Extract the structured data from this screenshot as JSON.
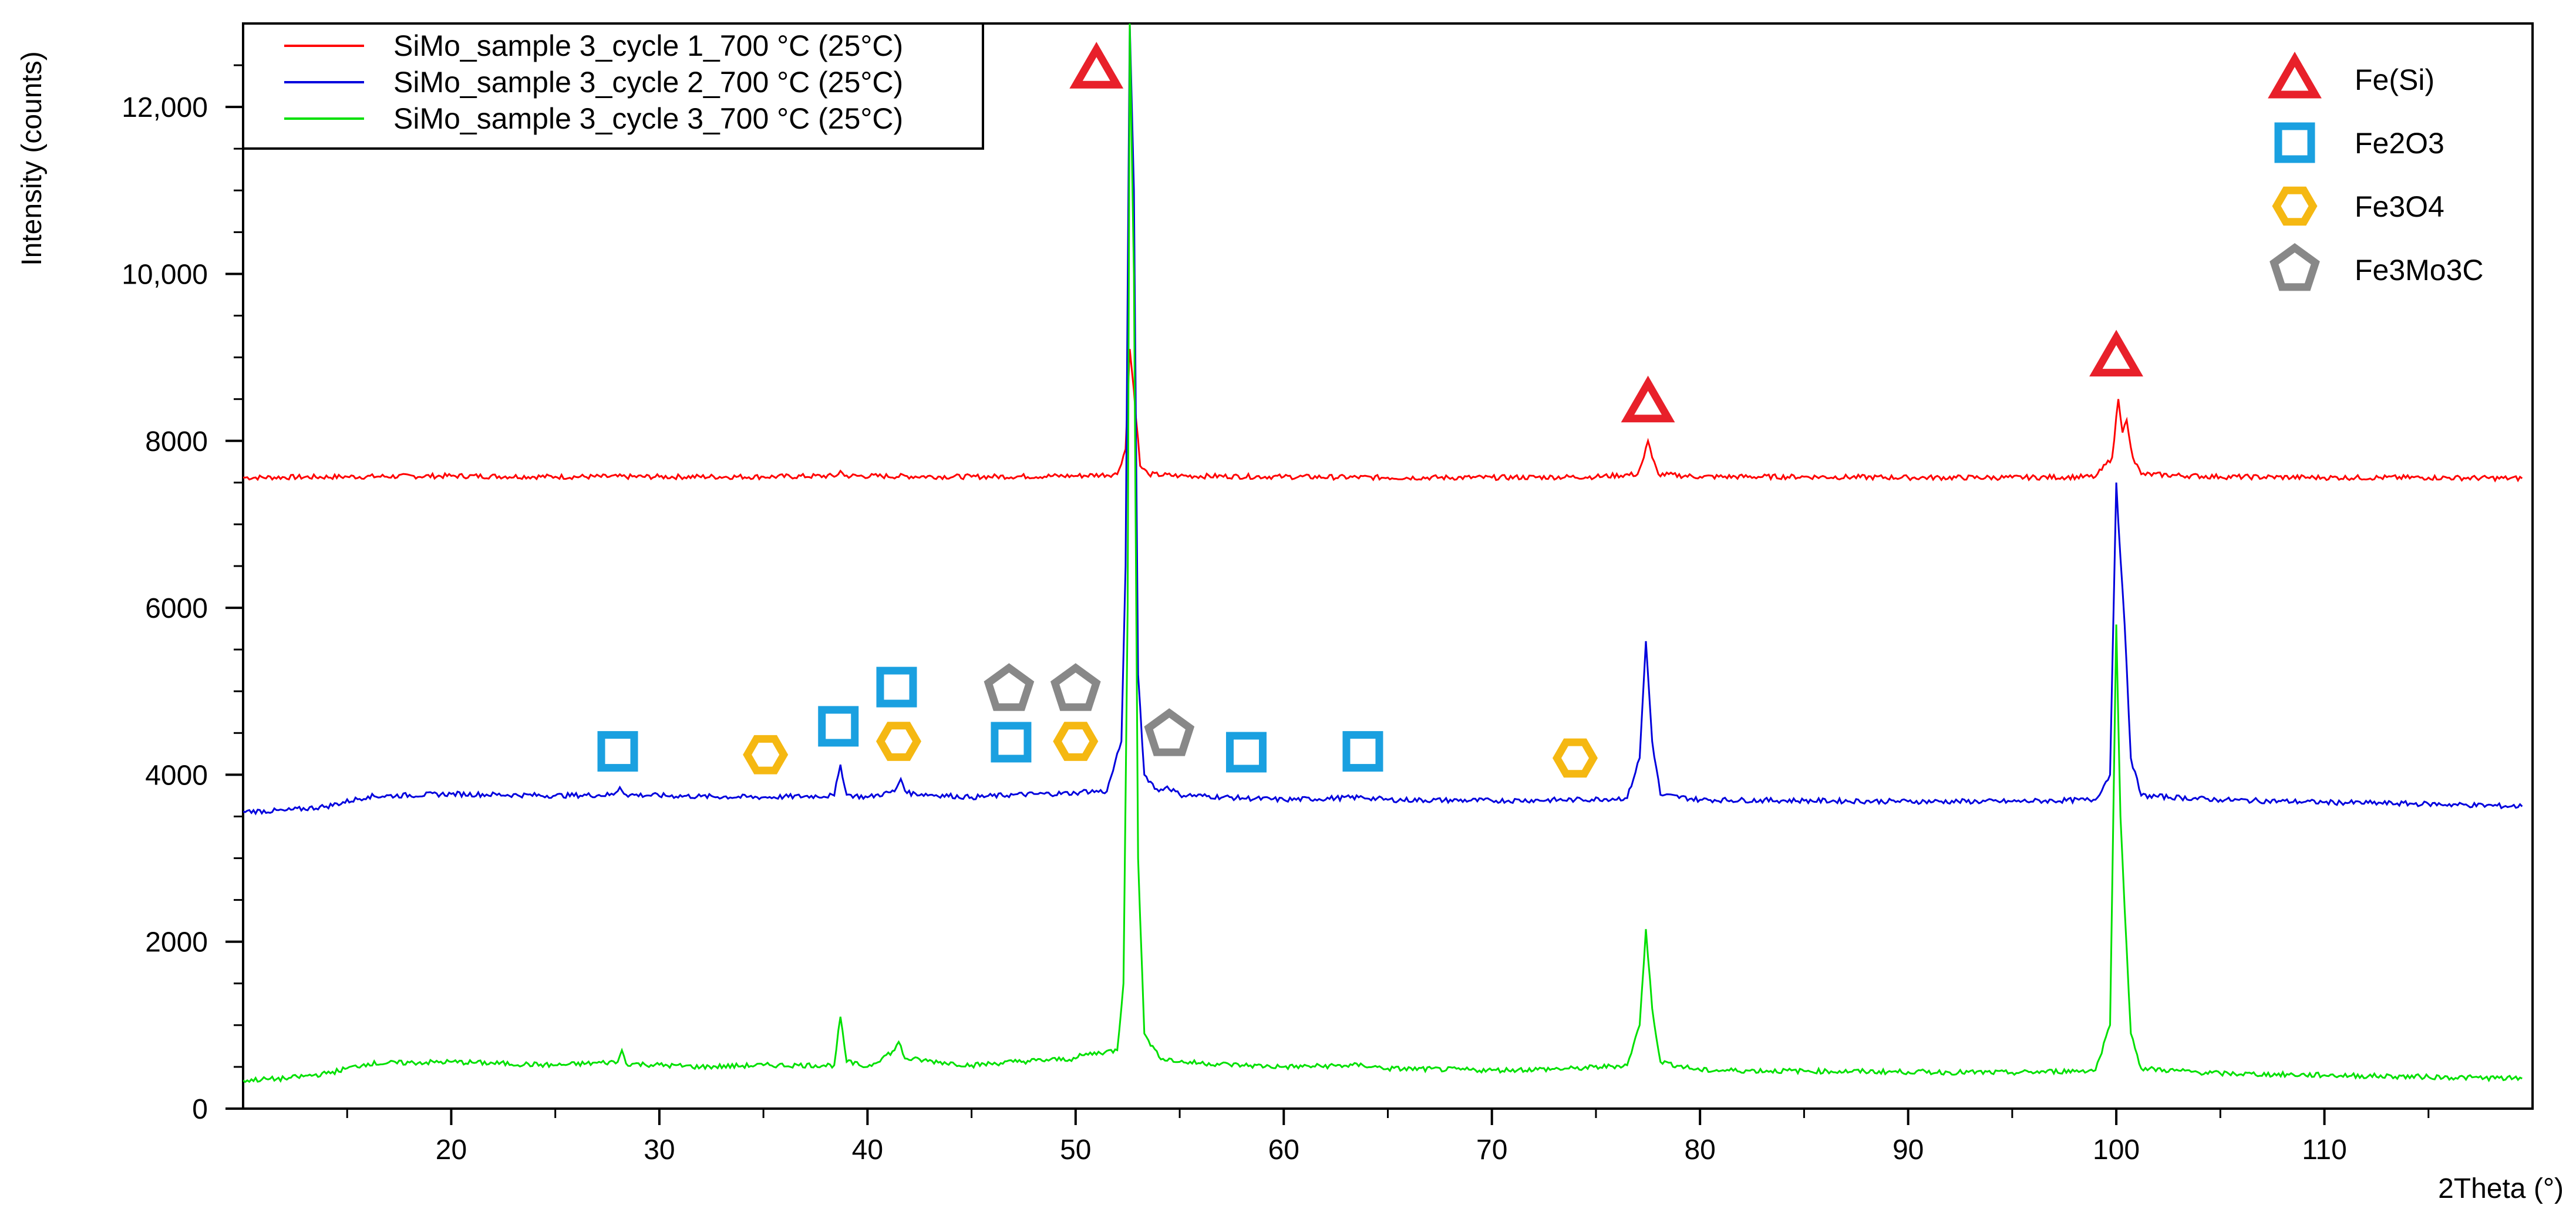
{
  "chart_data": {
    "type": "line",
    "xlabel": "2Theta (°)",
    "ylabel": "Intensity (counts)",
    "xlim": [
      10,
      120
    ],
    "ylim": [
      0,
      13000
    ],
    "x_ticks": [
      20,
      30,
      40,
      50,
      60,
      70,
      80,
      90,
      100,
      110
    ],
    "x_tick_labels": [
      "20",
      "30",
      "40",
      "50",
      "60",
      "70",
      "80",
      "90",
      "100",
      "110"
    ],
    "y_ticks": [
      0,
      2000,
      4000,
      6000,
      8000,
      10000,
      12000
    ],
    "y_tick_labels": [
      "0",
      "2000",
      "4000",
      "6000",
      "8000",
      "10,000",
      "12,000"
    ],
    "grid": false,
    "legend_position": "top-left",
    "series": [
      {
        "name": "SiMo_sample 3_cycle 1_700 °C (25°C)",
        "color": "#ff0000",
        "points": [
          [
            10,
            7560
          ],
          [
            15,
            7570
          ],
          [
            20,
            7580
          ],
          [
            25,
            7570
          ],
          [
            30,
            7570
          ],
          [
            35,
            7570
          ],
          [
            38.5,
            7580
          ],
          [
            38.7,
            7640
          ],
          [
            38.9,
            7580
          ],
          [
            45,
            7570
          ],
          [
            50,
            7580
          ],
          [
            52,
            7600
          ],
          [
            52.4,
            7900
          ],
          [
            52.6,
            9100
          ],
          [
            52.8,
            8600
          ],
          [
            53.1,
            7700
          ],
          [
            53.5,
            7600
          ],
          [
            55,
            7580
          ],
          [
            60,
            7570
          ],
          [
            65,
            7560
          ],
          [
            70,
            7560
          ],
          [
            75,
            7570
          ],
          [
            77,
            7600
          ],
          [
            77.3,
            7800
          ],
          [
            77.5,
            8000
          ],
          [
            77.7,
            7800
          ],
          [
            78,
            7600
          ],
          [
            80,
            7570
          ],
          [
            85,
            7570
          ],
          [
            90,
            7560
          ],
          [
            95,
            7560
          ],
          [
            99,
            7570
          ],
          [
            99.8,
            7800
          ],
          [
            100.1,
            8500
          ],
          [
            100.3,
            8100
          ],
          [
            100.5,
            8250
          ],
          [
            100.8,
            7800
          ],
          [
            101.2,
            7600
          ],
          [
            105,
            7570
          ],
          [
            110,
            7560
          ],
          [
            115,
            7560
          ],
          [
            119.5,
            7550
          ]
        ]
      },
      {
        "name": "SiMo_sample 3_cycle 2_700 °C (25°C)",
        "color": "#0000dd",
        "points": [
          [
            10,
            3560
          ],
          [
            12,
            3570
          ],
          [
            14,
            3620
          ],
          [
            16,
            3740
          ],
          [
            20,
            3770
          ],
          [
            25,
            3750
          ],
          [
            27.8,
            3760
          ],
          [
            28.1,
            3850
          ],
          [
            28.4,
            3760
          ],
          [
            32,
            3740
          ],
          [
            35,
            3730
          ],
          [
            38.4,
            3750
          ],
          [
            38.7,
            4120
          ],
          [
            39,
            3760
          ],
          [
            40,
            3730
          ],
          [
            41.3,
            3800
          ],
          [
            41.6,
            3950
          ],
          [
            41.9,
            3780
          ],
          [
            45,
            3730
          ],
          [
            47,
            3760
          ],
          [
            50,
            3780
          ],
          [
            50.3,
            3800
          ],
          [
            51.5,
            3800
          ],
          [
            52.2,
            4400
          ],
          [
            52.4,
            6500
          ],
          [
            52.6,
            13000
          ],
          [
            52.8,
            11000
          ],
          [
            53,
            5200
          ],
          [
            53.3,
            4000
          ],
          [
            54,
            3800
          ],
          [
            54.4,
            3860
          ],
          [
            55,
            3760
          ],
          [
            58,
            3720
          ],
          [
            60,
            3700
          ],
          [
            63.8,
            3730
          ],
          [
            65,
            3700
          ],
          [
            70,
            3690
          ],
          [
            74,
            3700
          ],
          [
            76.5,
            3720
          ],
          [
            77.1,
            4200
          ],
          [
            77.4,
            5600
          ],
          [
            77.7,
            4400
          ],
          [
            78.1,
            3760
          ],
          [
            80,
            3700
          ],
          [
            85,
            3690
          ],
          [
            90,
            3680
          ],
          [
            95,
            3680
          ],
          [
            99,
            3700
          ],
          [
            99.7,
            4000
          ],
          [
            100,
            7500
          ],
          [
            100.2,
            6600
          ],
          [
            100.4,
            5800
          ],
          [
            100.7,
            4200
          ],
          [
            101.2,
            3750
          ],
          [
            105,
            3700
          ],
          [
            110,
            3670
          ],
          [
            115,
            3650
          ],
          [
            119.5,
            3620
          ]
        ]
      },
      {
        "name": "SiMo_sample 3_cycle 3_700 °C (25°C)",
        "color": "#00e000",
        "points": [
          [
            10,
            340
          ],
          [
            12,
            360
          ],
          [
            14,
            420
          ],
          [
            16,
            540
          ],
          [
            20,
            560
          ],
          [
            25,
            520
          ],
          [
            28,
            560
          ],
          [
            28.2,
            700
          ],
          [
            28.4,
            540
          ],
          [
            32,
            500
          ],
          [
            35,
            520
          ],
          [
            38.4,
            520
          ],
          [
            38.7,
            1100
          ],
          [
            39,
            560
          ],
          [
            40,
            500
          ],
          [
            41.3,
            700
          ],
          [
            41.5,
            800
          ],
          [
            41.8,
            600
          ],
          [
            45,
            520
          ],
          [
            47,
            560
          ],
          [
            50,
            600
          ],
          [
            50.3,
            640
          ],
          [
            52,
            700
          ],
          [
            52.3,
            1500
          ],
          [
            52.5,
            6000
          ],
          [
            52.6,
            13000
          ],
          [
            52.8,
            10000
          ],
          [
            53,
            3000
          ],
          [
            53.3,
            900
          ],
          [
            54,
            620
          ],
          [
            55,
            560
          ],
          [
            58,
            520
          ],
          [
            60,
            500
          ],
          [
            63.8,
            520
          ],
          [
            65,
            480
          ],
          [
            70,
            460
          ],
          [
            74,
            480
          ],
          [
            76.5,
            520
          ],
          [
            77.1,
            1000
          ],
          [
            77.4,
            2150
          ],
          [
            77.7,
            1200
          ],
          [
            78.1,
            560
          ],
          [
            80,
            460
          ],
          [
            85,
            450
          ],
          [
            90,
            440
          ],
          [
            95,
            430
          ],
          [
            99,
            460
          ],
          [
            99.7,
            1000
          ],
          [
            100,
            5800
          ],
          [
            100.2,
            3500
          ],
          [
            100.4,
            2400
          ],
          [
            100.7,
            900
          ],
          [
            101.2,
            480
          ],
          [
            105,
            420
          ],
          [
            110,
            400
          ],
          [
            115,
            380
          ],
          [
            119.5,
            360
          ]
        ]
      }
    ],
    "phase_legend": [
      {
        "label": "Fe(Si)",
        "marker": "triangle",
        "color": "#e8202a"
      },
      {
        "label": "Fe2O3",
        "marker": "square",
        "color": "#1aa0e0"
      },
      {
        "label": "Fe3O4",
        "marker": "hexagon",
        "color": "#f5b812"
      },
      {
        "label": "Fe3Mo3C",
        "marker": "pentagon",
        "color": "#888888"
      }
    ],
    "phase_markers": [
      {
        "marker": "triangle",
        "x": 51,
        "y": 12450
      },
      {
        "marker": "triangle",
        "x": 77.5,
        "y": 8450
      },
      {
        "marker": "triangle",
        "x": 100,
        "y": 9000
      },
      {
        "marker": "square",
        "x": 28,
        "y": 4280
      },
      {
        "marker": "square",
        "x": 38.6,
        "y": 4580
      },
      {
        "marker": "square",
        "x": 41.4,
        "y": 5050
      },
      {
        "marker": "square",
        "x": 46.9,
        "y": 4390
      },
      {
        "marker": "square",
        "x": 58.2,
        "y": 4270
      },
      {
        "marker": "square",
        "x": 63.8,
        "y": 4280
      },
      {
        "marker": "hexagon",
        "x": 35.1,
        "y": 4240
      },
      {
        "marker": "hexagon",
        "x": 41.5,
        "y": 4400
      },
      {
        "marker": "hexagon",
        "x": 50,
        "y": 4400
      },
      {
        "marker": "hexagon",
        "x": 74,
        "y": 4200
      },
      {
        "marker": "pentagon",
        "x": 46.8,
        "y": 5020
      },
      {
        "marker": "pentagon",
        "x": 50,
        "y": 5020
      },
      {
        "marker": "pentagon",
        "x": 54.5,
        "y": 4480
      }
    ]
  }
}
